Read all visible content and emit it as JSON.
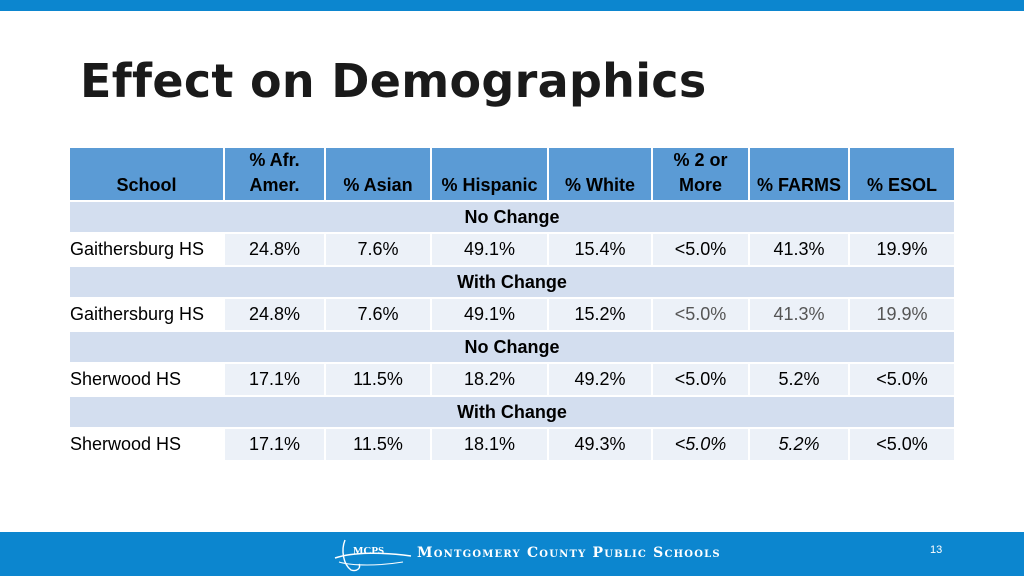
{
  "slide": {
    "title": "Effect on Demographics",
    "page_number": "13"
  },
  "table": {
    "headers": [
      "School",
      "% Afr.\nAmer.",
      "% Asian",
      "% Hispanic",
      "% White",
      "% 2 or\nMore",
      "% FARMS",
      "% ESOL"
    ],
    "sections": [
      {
        "label": "No Change",
        "row": [
          "Gaithersburg HS",
          "24.8%",
          "7.6%",
          "49.1%",
          "15.4%",
          "<5.0%",
          "41.3%",
          "19.9%"
        ]
      },
      {
        "label": "With Change",
        "row": [
          "Gaithersburg HS",
          "24.8%",
          "7.6%",
          "49.1%",
          "15.2%",
          "<5.0%",
          "41.3%",
          "19.9%"
        ]
      },
      {
        "label": "No Change",
        "row": [
          "Sherwood HS",
          "17.1%",
          "11.5%",
          "18.2%",
          "49.2%",
          "<5.0%",
          "5.2%",
          "<5.0%"
        ]
      },
      {
        "label": "With Change",
        "row": [
          "Sherwood HS",
          "17.1%",
          "11.5%",
          "18.1%",
          "49.3%",
          "<5.0%",
          "5.2%",
          "<5.0%"
        ]
      }
    ]
  },
  "footer": {
    "logo_text": "MCPS",
    "org_name": "Montgomery County Public Schools"
  },
  "colors": {
    "accent_bar": "#0c86cf",
    "header_fill": "#5b9bd5",
    "section_fill": "#d3deef",
    "cell_fill": "#ecf1f8"
  }
}
